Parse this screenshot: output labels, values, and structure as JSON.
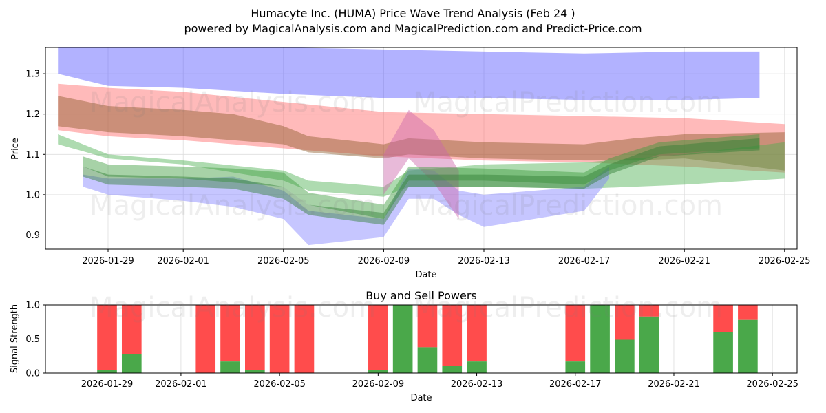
{
  "header": {
    "title": "Humacyte Inc. (HUMA) Price Wave Trend Analysis (Feb 24 )",
    "subtitle": "powered by MagicalAnalysis.com and MagicalPrediction.com and Predict-Price.com"
  },
  "watermarks": [
    "MagicalAnalysis.com",
    "MagicalPrediction.com"
  ],
  "colors": {
    "blue": "#5555ff",
    "red": "#ff6666",
    "green": "#4caf50",
    "brown": "#8b5a2b",
    "buy": "#4aa84a",
    "sell": "#ff4c4c"
  },
  "chart_data": [
    {
      "type": "area",
      "ylabel": "Price",
      "xlabel": "Date",
      "ylim": [
        0.865,
        1.365
      ],
      "xlim": [
        "2026-01-26T12",
        "2026-02-25T12"
      ],
      "yticks": [
        0.9,
        1.0,
        1.1,
        1.2,
        1.3
      ],
      "xticks": [
        "2026-01-29",
        "2026-02-01",
        "2026-02-05",
        "2026-02-09",
        "2026-02-13",
        "2026-02-17",
        "2026-02-21",
        "2026-02-25"
      ],
      "grid": true,
      "series": [
        {
          "name": "blue band",
          "color": "#5555ff",
          "x": [
            "2026-01-27",
            "2026-01-29",
            "2026-02-01",
            "2026-02-05",
            "2026-02-09",
            "2026-02-13",
            "2026-02-17",
            "2026-02-21",
            "2026-02-24"
          ],
          "upper": [
            1.37,
            1.37,
            1.37,
            1.365,
            1.36,
            1.355,
            1.35,
            1.355,
            1.355
          ],
          "lower": [
            1.3,
            1.27,
            1.265,
            1.25,
            1.24,
            1.24,
            1.235,
            1.235,
            1.24
          ]
        },
        {
          "name": "red band",
          "color": "#ff6666",
          "x": [
            "2026-01-27",
            "2026-01-29",
            "2026-02-01",
            "2026-02-05",
            "2026-02-09",
            "2026-02-13",
            "2026-02-17",
            "2026-02-21",
            "2026-02-25"
          ],
          "upper": [
            1.275,
            1.265,
            1.255,
            1.23,
            1.205,
            1.2,
            1.195,
            1.19,
            1.175
          ],
          "lower": [
            1.16,
            1.145,
            1.135,
            1.115,
            1.095,
            1.085,
            1.08,
            1.07,
            1.055
          ]
        },
        {
          "name": "brown band",
          "color": "#8b5a2b",
          "x": [
            "2026-01-27",
            "2026-01-29",
            "2026-02-01",
            "2026-02-03",
            "2026-02-05",
            "2026-02-06",
            "2026-02-09",
            "2026-02-10",
            "2026-02-13",
            "2026-02-17",
            "2026-02-19",
            "2026-02-21",
            "2026-02-25"
          ],
          "upper": [
            1.245,
            1.22,
            1.21,
            1.2,
            1.17,
            1.145,
            1.125,
            1.14,
            1.13,
            1.125,
            1.14,
            1.15,
            1.155
          ],
          "lower": [
            1.17,
            1.155,
            1.145,
            1.135,
            1.125,
            1.105,
            1.09,
            1.1,
            1.09,
            1.085,
            1.085,
            1.09,
            1.06
          ]
        },
        {
          "name": "green band",
          "color": "#4caf50",
          "x": [
            "2026-01-27",
            "2026-01-29",
            "2026-02-01",
            "2026-02-05",
            "2026-02-06",
            "2026-02-09",
            "2026-02-10",
            "2026-02-13",
            "2026-02-17",
            "2026-02-21",
            "2026-02-25"
          ],
          "upper": [
            1.15,
            1.1,
            1.085,
            1.06,
            1.035,
            1.02,
            1.06,
            1.075,
            1.08,
            1.1,
            1.13
          ],
          "lower": [
            1.125,
            1.09,
            1.075,
            1.035,
            1.01,
            0.995,
            1.02,
            1.02,
            1.015,
            1.025,
            1.04
          ]
        },
        {
          "name": "light blue band",
          "color": "#8080ff",
          "x": [
            "2026-01-28",
            "2026-01-29",
            "2026-02-01",
            "2026-02-03",
            "2026-02-05",
            "2026-02-06",
            "2026-02-09",
            "2026-02-10",
            "2026-02-11",
            "2026-02-12",
            "2026-02-13",
            "2026-02-17",
            "2026-02-18"
          ],
          "upper": [
            1.05,
            1.04,
            1.04,
            1.045,
            1.01,
            0.96,
            0.94,
            1.065,
            1.06,
            1.01,
            1.0,
            1.02,
            1.07
          ],
          "lower": [
            1.02,
            1.0,
            0.985,
            0.97,
            0.94,
            0.875,
            0.895,
            0.99,
            0.99,
            0.95,
            0.92,
            0.96,
            1.04
          ]
        },
        {
          "name": "spike band",
          "color": "#cc66aa",
          "x": [
            "2026-02-09",
            "2026-02-10",
            "2026-02-11",
            "2026-02-12"
          ],
          "upper": [
            1.1,
            1.21,
            1.16,
            1.06
          ],
          "lower": [
            1.0,
            1.09,
            1.03,
            0.94
          ]
        },
        {
          "name": "green wave 1",
          "color": "#3b9b3b",
          "x": [
            "2026-01-28",
            "2026-01-29",
            "2026-02-01",
            "2026-02-03",
            "2026-02-05",
            "2026-02-06",
            "2026-02-09",
            "2026-02-10",
            "2026-02-13",
            "2026-02-17",
            "2026-02-18",
            "2026-02-20",
            "2026-02-24"
          ],
          "upper": [
            1.095,
            1.075,
            1.07,
            1.065,
            1.055,
            1.005,
            0.975,
            1.07,
            1.065,
            1.055,
            1.09,
            1.13,
            1.15
          ],
          "lower": [
            1.07,
            1.045,
            1.04,
            1.03,
            1.02,
            0.975,
            0.94,
            1.035,
            1.035,
            1.025,
            1.06,
            1.1,
            1.115
          ]
        },
        {
          "name": "green wave 2",
          "color": "#2e7d32",
          "x": [
            "2026-01-28",
            "2026-01-29",
            "2026-02-01",
            "2026-02-03",
            "2026-02-05",
            "2026-02-06",
            "2026-02-09",
            "2026-02-10",
            "2026-02-13",
            "2026-02-17",
            "2026-02-18",
            "2026-02-20",
            "2026-02-24"
          ],
          "upper": [
            1.07,
            1.05,
            1.045,
            1.04,
            1.02,
            0.975,
            0.955,
            1.05,
            1.05,
            1.045,
            1.075,
            1.12,
            1.14
          ],
          "lower": [
            1.045,
            1.025,
            1.02,
            1.015,
            0.99,
            0.95,
            0.925,
            1.02,
            1.02,
            1.015,
            1.05,
            1.095,
            1.11
          ]
        }
      ]
    },
    {
      "type": "bar",
      "title": "Buy and Sell Powers",
      "ylabel": "Signal Strength",
      "xlabel": "Date",
      "ylim": [
        0.0,
        1.0
      ],
      "yticks": [
        "0.0",
        "0.5",
        "1.0"
      ],
      "xticks": [
        "2026-01-29",
        "2026-02-01",
        "2026-02-05",
        "2026-02-09",
        "2026-02-13",
        "2026-02-17",
        "2026-02-21",
        "2026-02-25"
      ],
      "grid": true,
      "series": [
        {
          "name": "Buy",
          "color": "#4aa84a"
        },
        {
          "name": "Sell",
          "color": "#ff4c4c"
        }
      ],
      "bars": [
        {
          "date": "2026-01-29",
          "buy": 0.05
        },
        {
          "date": "2026-01-30",
          "buy": 0.28
        },
        {
          "date": "2026-02-02",
          "buy": 0.0
        },
        {
          "date": "2026-02-03",
          "buy": 0.17
        },
        {
          "date": "2026-02-04",
          "buy": 0.05
        },
        {
          "date": "2026-02-05",
          "buy": 0.0
        },
        {
          "date": "2026-02-06",
          "buy": 0.0
        },
        {
          "date": "2026-02-09",
          "buy": 0.05
        },
        {
          "date": "2026-02-10",
          "buy": 1.0
        },
        {
          "date": "2026-02-11",
          "buy": 0.38
        },
        {
          "date": "2026-02-12",
          "buy": 0.11
        },
        {
          "date": "2026-02-13",
          "buy": 0.17
        },
        {
          "date": "2026-02-17",
          "buy": 0.17
        },
        {
          "date": "2026-02-18",
          "buy": 1.0
        },
        {
          "date": "2026-02-19",
          "buy": 0.49
        },
        {
          "date": "2026-02-20",
          "buy": 0.83
        },
        {
          "date": "2026-02-23",
          "buy": 0.6
        },
        {
          "date": "2026-02-24",
          "buy": 0.78
        }
      ]
    }
  ]
}
